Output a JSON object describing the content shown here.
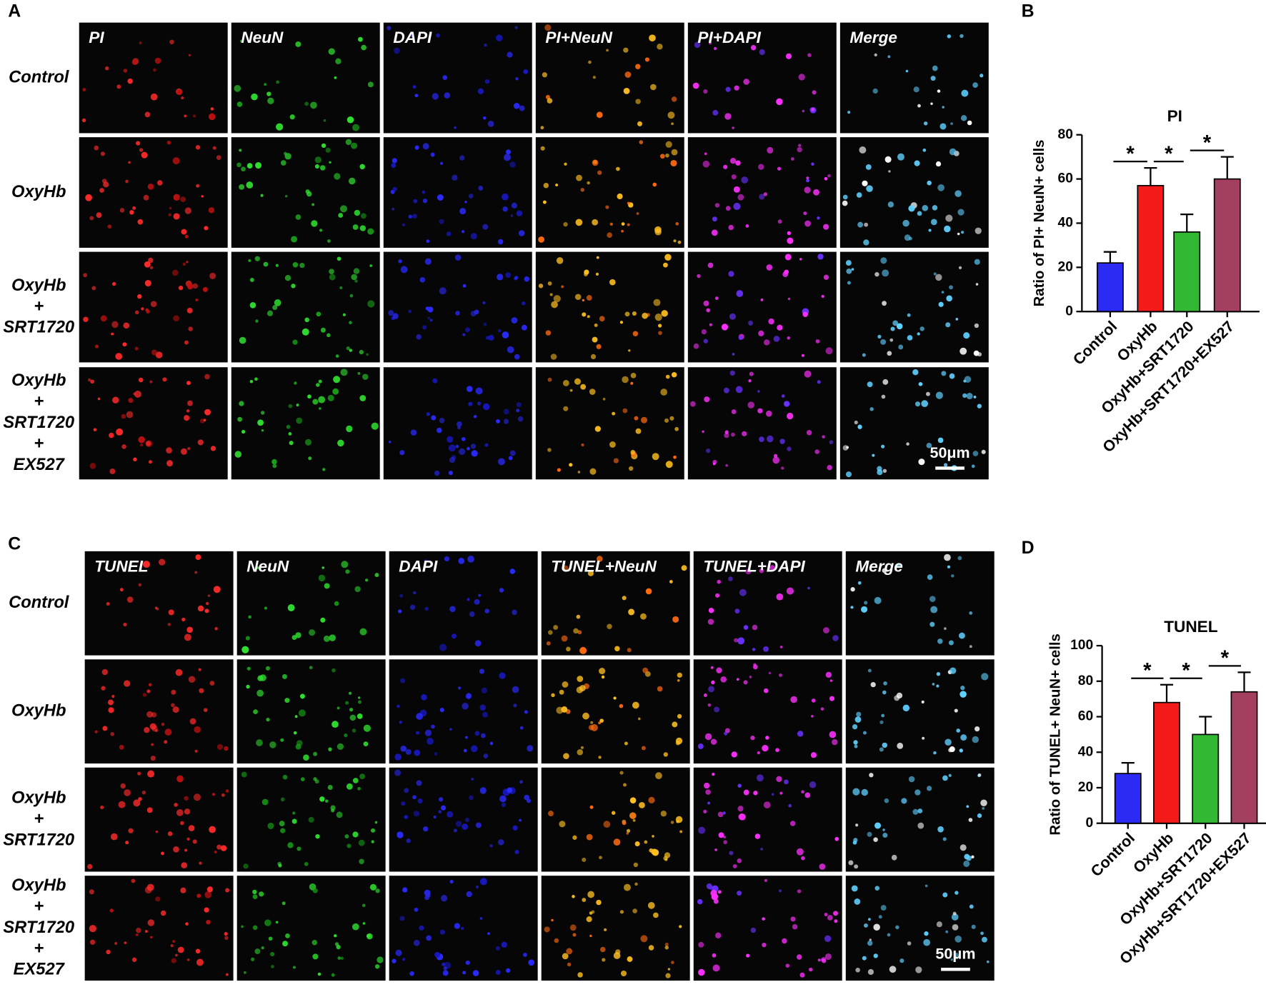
{
  "panels": [
    {
      "label": "A",
      "columns": [
        "PI",
        "NeuN",
        "DAPI",
        "PI+NeuN",
        "PI+DAPI",
        "Merge"
      ],
      "rows": [
        [
          "Control"
        ],
        [
          "OxyHb"
        ],
        [
          "OxyHb",
          "+",
          "SRT1720"
        ],
        [
          "OxyHb",
          "+",
          "SRT1720",
          "+",
          "EX527"
        ]
      ],
      "scale_bar": "50μm"
    },
    {
      "label": "C",
      "columns": [
        "TUNEL",
        "NeuN",
        "DAPI",
        "TUNEL+NeuN",
        "TUNEL+DAPI",
        "Merge"
      ],
      "rows": [
        [
          "Control"
        ],
        [
          "OxyHb"
        ],
        [
          "OxyHb",
          "+",
          "SRT1720"
        ],
        [
          "OxyHb",
          "+",
          "SRT1720",
          "+",
          "EX527"
        ]
      ],
      "scale_bar": "50μm"
    }
  ],
  "chart_data": [
    {
      "type": "bar",
      "panel_label": "B",
      "title": "PI",
      "y_label": "Ratio of PI+ NeuN+ cells",
      "categories": [
        "Control",
        "OxyHb",
        "OxyHb+SRT1720",
        "OxyHb+SRT1720+EX527"
      ],
      "values": [
        22,
        57,
        36,
        60
      ],
      "errors": [
        5,
        8,
        8,
        10
      ],
      "colors": [
        "#2b2bf5",
        "#f51a1a",
        "#33b833",
        "#a3405f"
      ],
      "ylim": [
        0,
        80
      ],
      "yticks": [
        0,
        20,
        40,
        60,
        80
      ],
      "significance": [
        {
          "pair": [
            0,
            1
          ],
          "label": "*"
        },
        {
          "pair": [
            1,
            2
          ],
          "label": "*"
        },
        {
          "pair": [
            2,
            3
          ],
          "label": "*"
        }
      ]
    },
    {
      "type": "bar",
      "panel_label": "D",
      "title": "TUNEL",
      "y_label": "Ratio of TUNEL+ NeuN+ cells",
      "categories": [
        "Control",
        "OxyHb",
        "OxyHb+SRT1720",
        "OxyHb+SRT1720+EX527"
      ],
      "values": [
        28,
        68,
        50,
        74
      ],
      "errors": [
        6,
        10,
        10,
        11
      ],
      "colors": [
        "#2b2bf5",
        "#f51a1a",
        "#33b833",
        "#a3405f"
      ],
      "ylim": [
        0,
        100
      ],
      "yticks": [
        0,
        20,
        40,
        60,
        80,
        100
      ],
      "significance": [
        {
          "pair": [
            0,
            1
          ],
          "label": "*"
        },
        {
          "pair": [
            1,
            2
          ],
          "label": "*"
        },
        {
          "pair": [
            2,
            3
          ],
          "label": "*"
        }
      ]
    }
  ]
}
